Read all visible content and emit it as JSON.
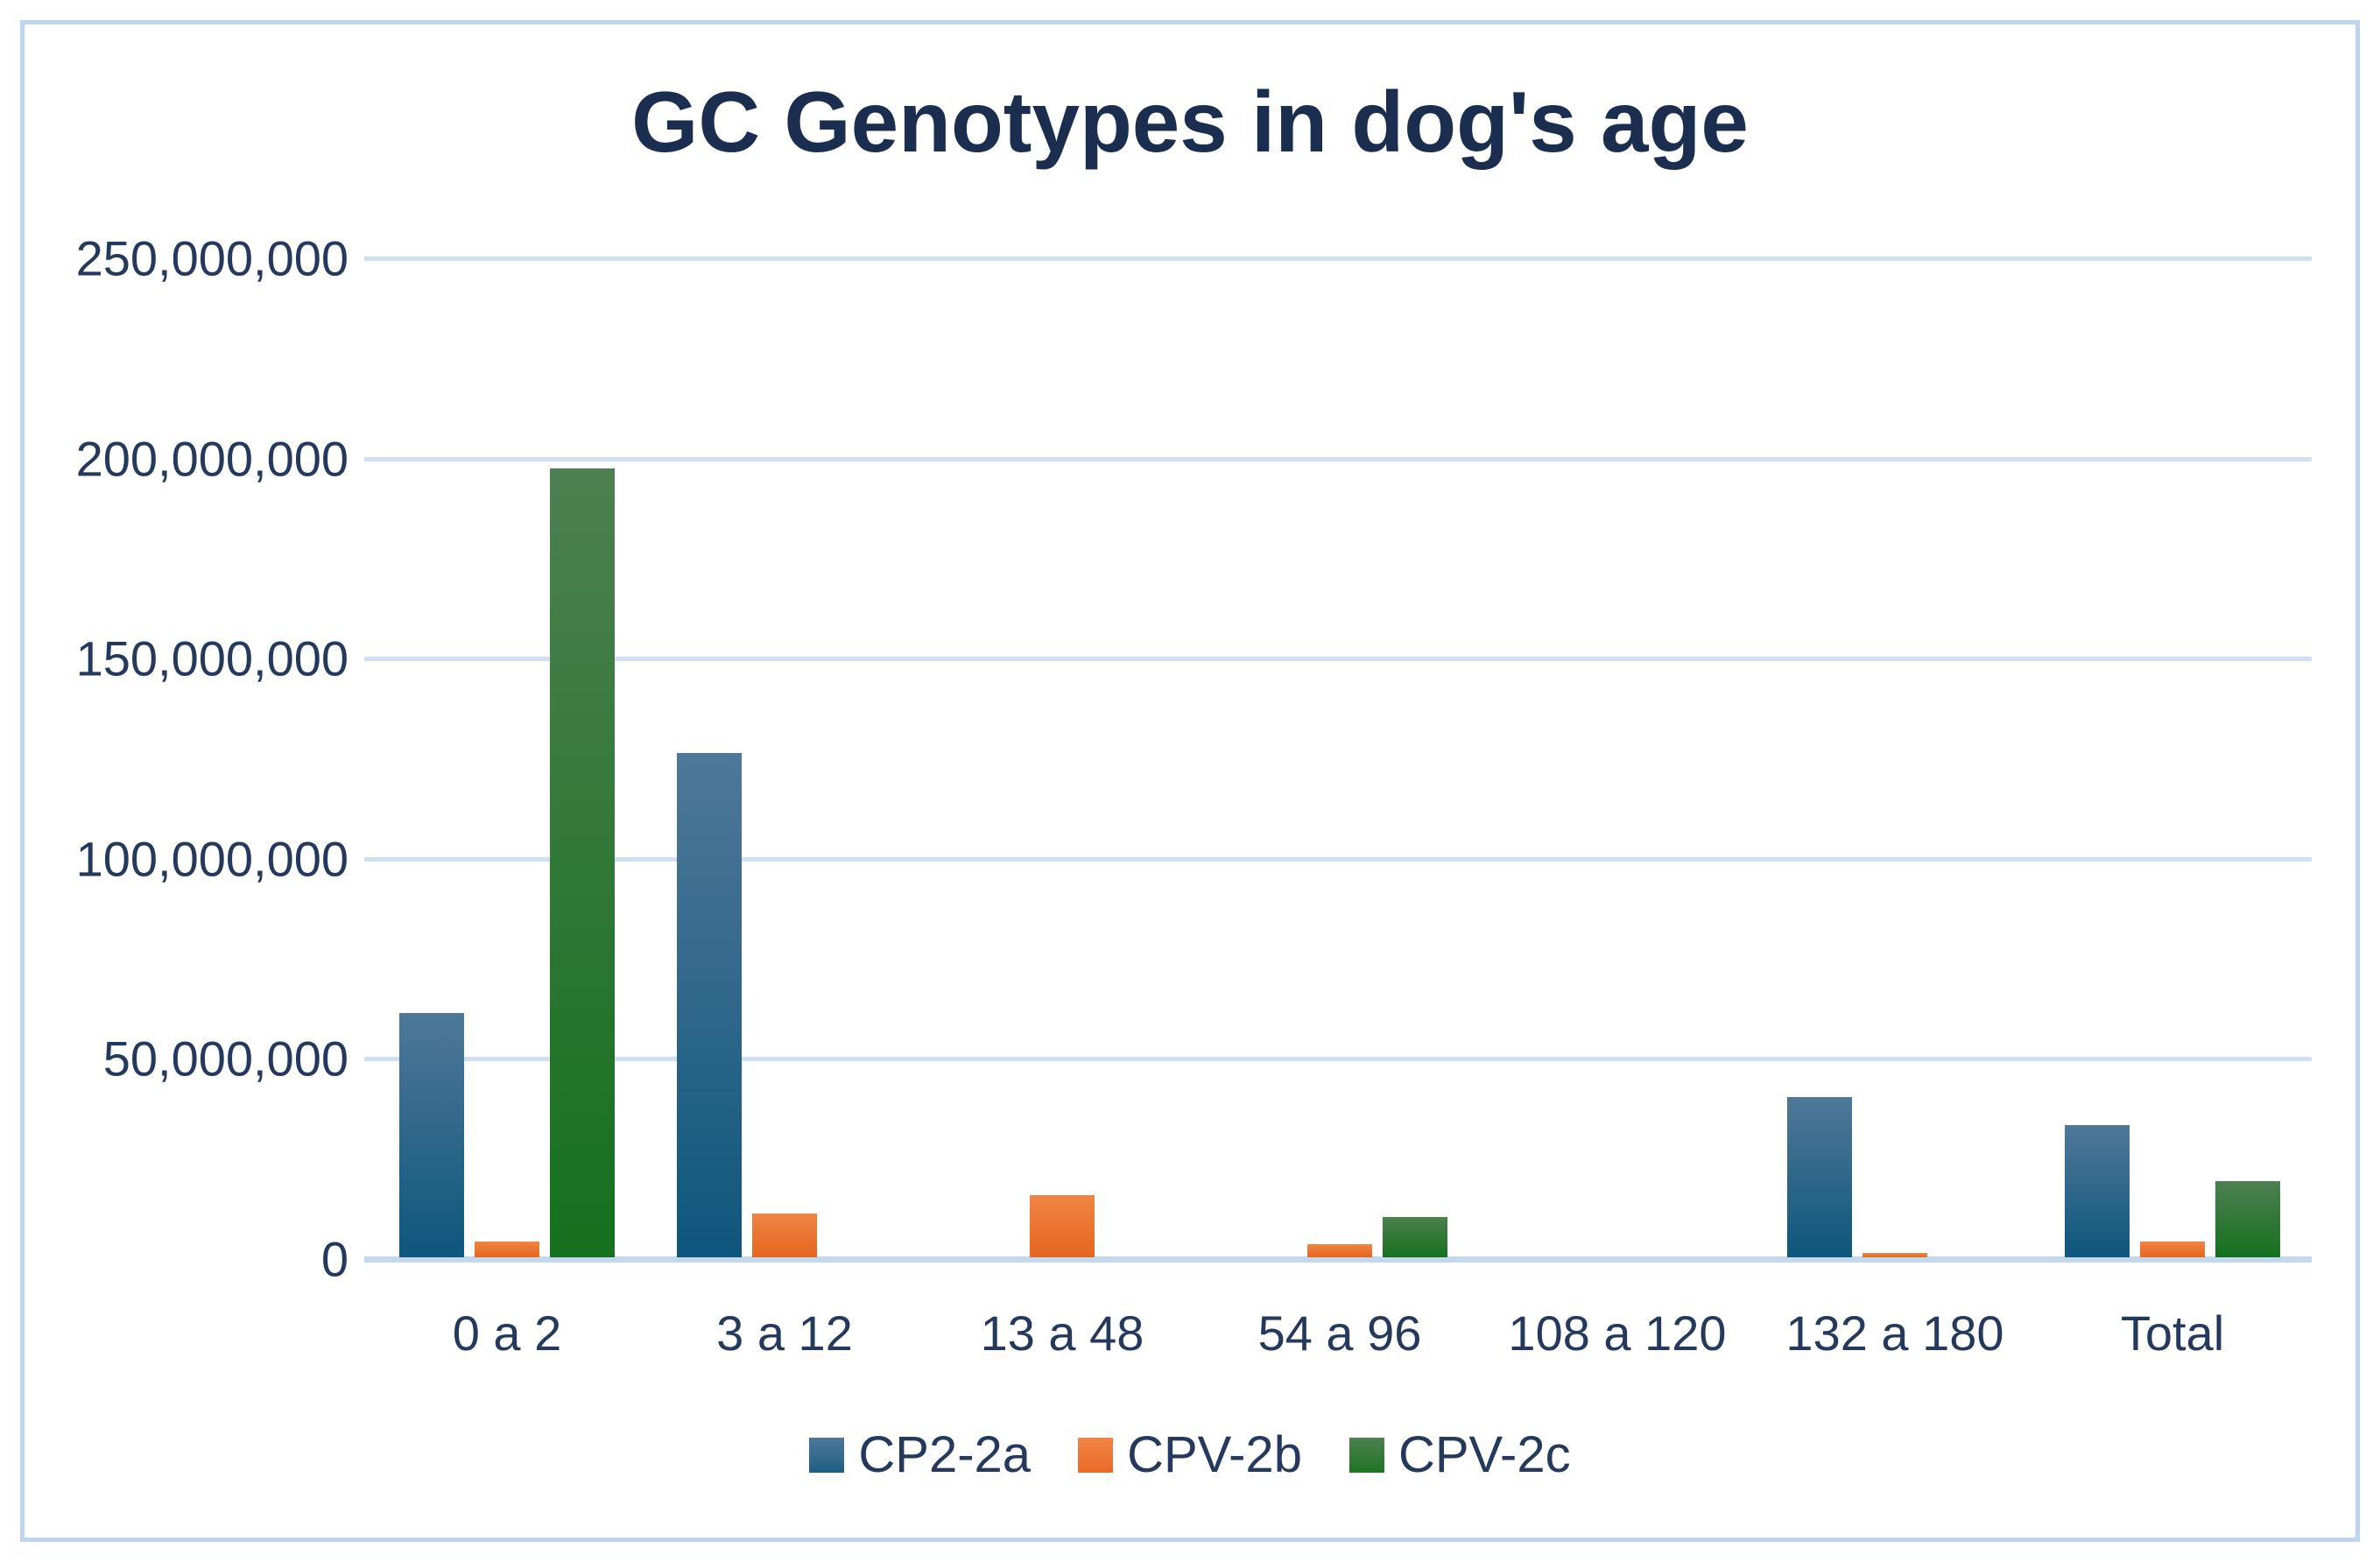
{
  "chart_data": {
    "type": "bar",
    "title": "GC Genotypes in dog's age",
    "categories": [
      "0 a 2",
      "3 a 12",
      "13 a 48",
      "54 a 96",
      "108 a 120",
      "132 a 180",
      "Total"
    ],
    "series": [
      {
        "name": "CP2-2a",
        "color_top": "#4f7899",
        "color_bottom": "#0e567d",
        "legend_color": "#1e5e83",
        "values": [
          61000000,
          126000000,
          0,
          0,
          0,
          40000000,
          33000000
        ]
      },
      {
        "name": "CPV-2b",
        "color_top": "#f08445",
        "color_bottom": "#e5661e",
        "legend_color": "#ec6b26",
        "values": [
          4000000,
          11000000,
          15500000,
          3200000,
          0,
          1000000,
          4000000
        ]
      },
      {
        "name": "CPV-2c",
        "color_top": "#4d8051",
        "color_bottom": "#15701d",
        "legend_color": "#1e7423",
        "values": [
          197000000,
          0,
          0,
          10000000,
          0,
          0,
          19000000
        ]
      }
    ],
    "y_axis": {
      "tick_labels": [
        "250,000,000",
        "200,000,000",
        "150,000,000",
        "100,000,000",
        "50,000,000",
        "0"
      ],
      "tick_values": [
        250000000,
        200000000,
        150000000,
        100000000,
        50000000,
        0
      ],
      "min": 0,
      "max": 250000000
    },
    "xlabel": "",
    "ylabel": "",
    "grid": true,
    "legend_position": "bottom"
  },
  "colors": {
    "background": "#ffffff",
    "frame_border": "#bcd6ef",
    "gridline": "#cfe0f4",
    "axis_line": "#c3d7ef",
    "title_text": "#1b2e4f",
    "label_text": "#24395c"
  }
}
